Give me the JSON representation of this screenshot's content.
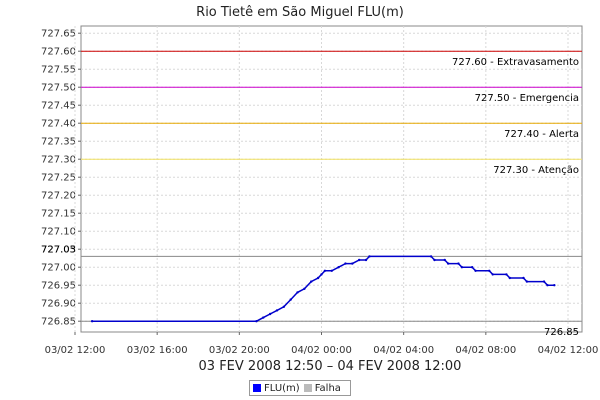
{
  "chart_data": {
    "type": "line",
    "title": "Rio Tietê em São Miguel FLU(m)",
    "subtitle": "03 FEV 2008 12:50 – 04 FEV 2008 12:00",
    "xlabel": "",
    "ylabel": "",
    "x_ticks": [
      "03/02 12:00",
      "03/02 16:00",
      "03/02 20:00",
      "04/02 00:00",
      "04/02 04:00",
      "04/02 08:00",
      "04/02 12:00"
    ],
    "ylim": [
      726.82,
      727.67
    ],
    "y_ticks": [
      726.85,
      726.9,
      726.95,
      727.0,
      727.05,
      727.1,
      727.15,
      727.2,
      727.25,
      727.3,
      727.35,
      727.4,
      727.45,
      727.5,
      727.55,
      727.6,
      727.65
    ],
    "series": [
      {
        "name": "FLU(m)",
        "color": "#0000cc",
        "points": [
          {
            "x": "03/02 12:50",
            "y": 726.85
          },
          {
            "x": "03/02 20:50",
            "y": 726.85
          },
          {
            "x": "03/02 21:10",
            "y": 726.86
          },
          {
            "x": "03/02 21:30",
            "y": 726.87
          },
          {
            "x": "03/02 21:50",
            "y": 726.88
          },
          {
            "x": "03/02 22:10",
            "y": 726.89
          },
          {
            "x": "03/02 22:30",
            "y": 726.91
          },
          {
            "x": "03/02 22:50",
            "y": 726.93
          },
          {
            "x": "03/02 23:10",
            "y": 726.94
          },
          {
            "x": "03/02 23:30",
            "y": 726.96
          },
          {
            "x": "03/02 23:50",
            "y": 726.97
          },
          {
            "x": "04/02 00:00",
            "y": 726.98
          },
          {
            "x": "04/02 00:10",
            "y": 726.99
          },
          {
            "x": "04/02 00:30",
            "y": 726.99
          },
          {
            "x": "04/02 00:50",
            "y": 727.0
          },
          {
            "x": "04/02 01:10",
            "y": 727.01
          },
          {
            "x": "04/02 01:30",
            "y": 727.01
          },
          {
            "x": "04/02 01:50",
            "y": 727.02
          },
          {
            "x": "04/02 02:10",
            "y": 727.02
          },
          {
            "x": "04/02 02:20",
            "y": 727.03
          },
          {
            "x": "04/02 05:20",
            "y": 727.03
          },
          {
            "x": "04/02 05:30",
            "y": 727.02
          },
          {
            "x": "04/02 06:00",
            "y": 727.02
          },
          {
            "x": "04/02 06:10",
            "y": 727.01
          },
          {
            "x": "04/02 06:40",
            "y": 727.01
          },
          {
            "x": "04/02 06:50",
            "y": 727.0
          },
          {
            "x": "04/02 07:20",
            "y": 727.0
          },
          {
            "x": "04/02 07:30",
            "y": 726.99
          },
          {
            "x": "04/02 08:10",
            "y": 726.99
          },
          {
            "x": "04/02 08:20",
            "y": 726.98
          },
          {
            "x": "04/02 09:00",
            "y": 726.98
          },
          {
            "x": "04/02 09:10",
            "y": 726.97
          },
          {
            "x": "04/02 09:50",
            "y": 726.97
          },
          {
            "x": "04/02 10:00",
            "y": 726.96
          },
          {
            "x": "04/02 10:50",
            "y": 726.96
          },
          {
            "x": "04/02 11:00",
            "y": 726.95
          },
          {
            "x": "04/02 11:20",
            "y": 726.95
          }
        ]
      }
    ],
    "reference_lines": [
      {
        "value": 727.6,
        "label": "727.60 - Extravasamento",
        "color": "#cc0000"
      },
      {
        "value": 727.5,
        "label": "727.50 - Emergencia",
        "color": "#cc00cc"
      },
      {
        "value": 727.4,
        "label": "727.40 - Alerta",
        "color": "#e6a800"
      },
      {
        "value": 727.3,
        "label": "727.30 - Atenção",
        "color": "#f0e060"
      },
      {
        "value": 727.03,
        "label": "727.03",
        "color": "#888888"
      },
      {
        "value": 726.85,
        "label": "726.85",
        "color": "#888888"
      }
    ],
    "grid": true,
    "legend_position": "bottom-center",
    "legend": [
      {
        "name": "FLU(m)",
        "color": "#0000ff"
      },
      {
        "name": "Falha",
        "color": "#bbbbbb"
      }
    ]
  }
}
